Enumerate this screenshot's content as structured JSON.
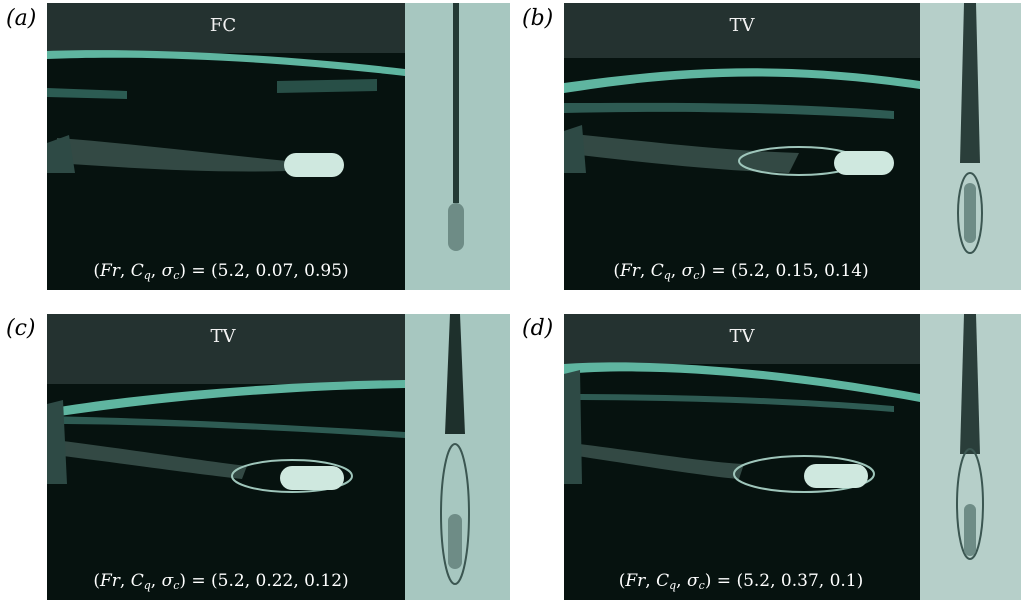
{
  "panels": [
    {
      "letter": "(a)",
      "regime": "FC",
      "params_values": "(5.2, 0.07, 0.95)"
    },
    {
      "letter": "(b)",
      "regime": "TV",
      "params_values": "(5.2, 0.15, 0.14)"
    },
    {
      "letter": "(c)",
      "regime": "TV",
      "params_values": "(5.2, 0.22, 0.12)"
    },
    {
      "letter": "(d)",
      "regime": "TV",
      "params_values": "(5.2, 0.37, 0.1)"
    }
  ],
  "params_label": {
    "fr": "Fr",
    "cq_base": "C",
    "cq_sub": "q",
    "sigma_base": "σ",
    "sigma_sub": "c"
  },
  "colors": {
    "water_dark": "#05100e",
    "free_surface": "#5fb5a0",
    "model": "#cfe8df",
    "side_bg": "#a7c7c0"
  }
}
